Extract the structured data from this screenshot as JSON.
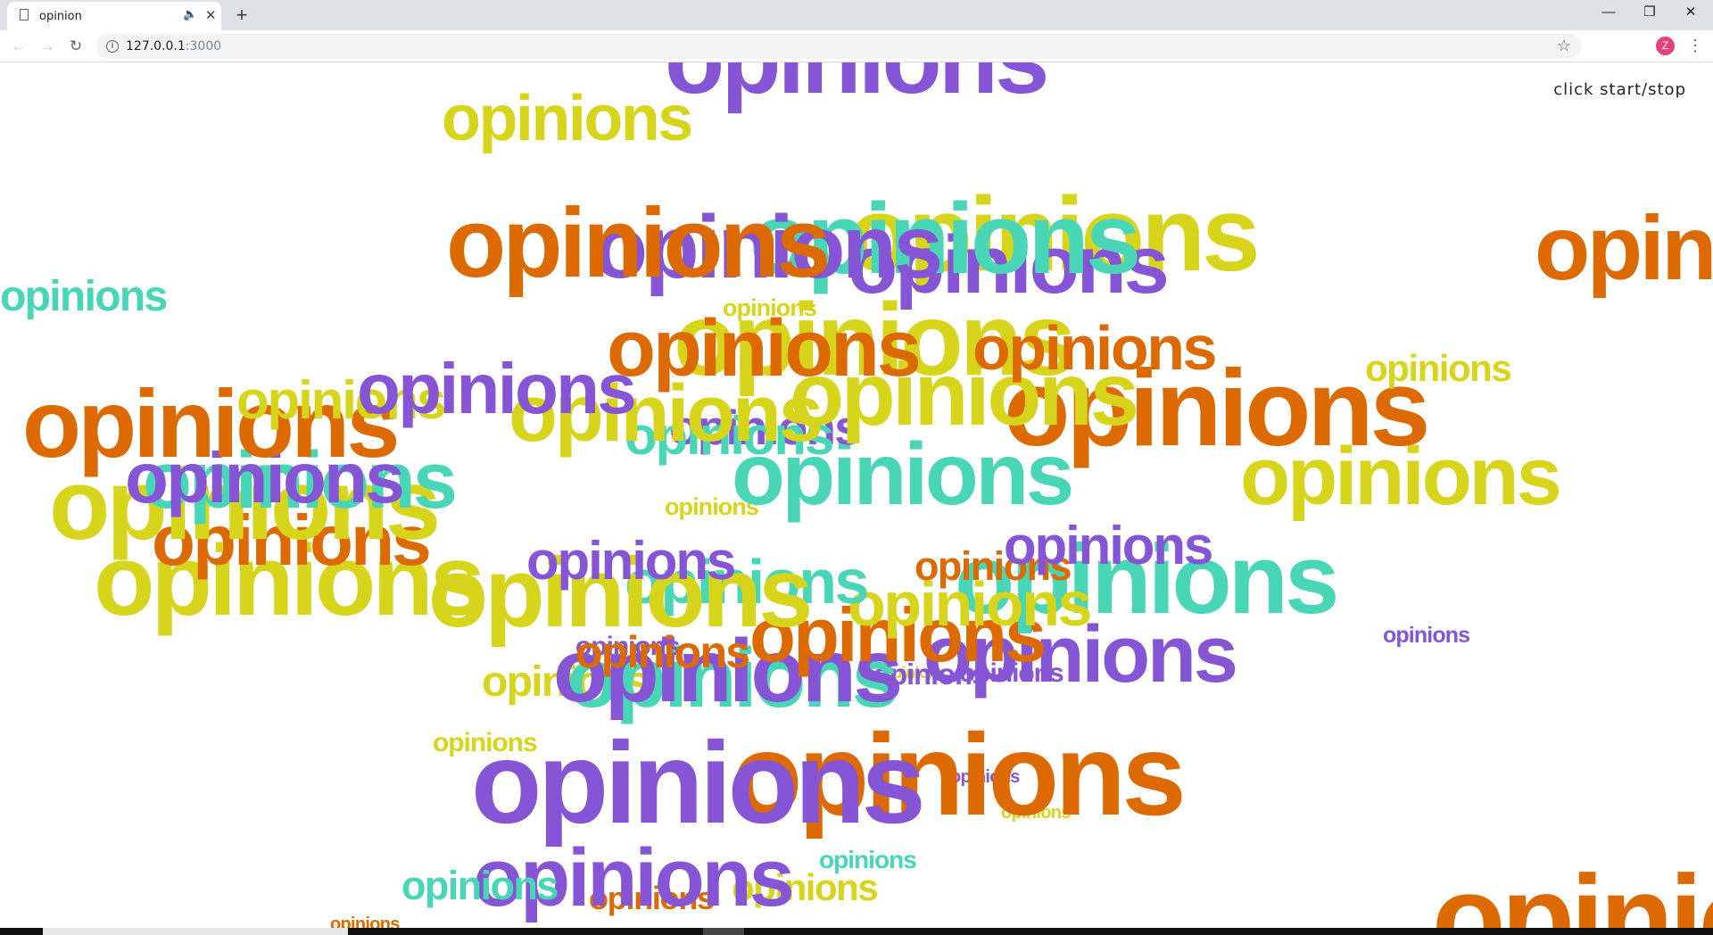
{
  "browser": {
    "tab_title": "opinion",
    "new_tab": "+",
    "url_host": "127.0.0.1",
    "url_port": ":3000",
    "avatar_letter": "Z",
    "icons": {
      "page": "page-icon",
      "audio": "audio-icon",
      "close": "close-icon",
      "back": "back-arrow-icon",
      "forward": "forward-arrow-icon",
      "reload": "reload-icon",
      "info": "info-icon",
      "star": "star-icon",
      "menu": "kebab-menu-icon"
    }
  },
  "page": {
    "control_text": "click start/stop",
    "word": "opinions"
  },
  "colors": {
    "purple": "#8555d6",
    "orange": "#dc6a00",
    "yellow": "#d7d51b",
    "teal": "#48d6b7"
  }
}
